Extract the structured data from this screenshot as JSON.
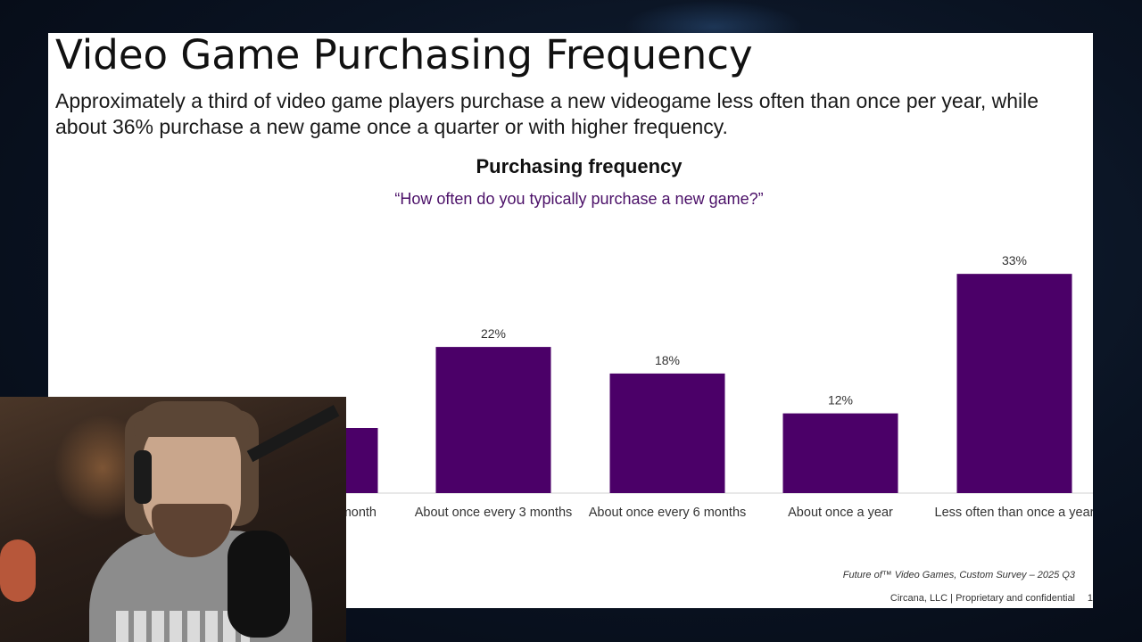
{
  "slide": {
    "title": "Video Game Purchasing Frequency",
    "subtitle": "Approximately a third of video game players purchase a new videogame less often than once per year, while about 36% purchase a new game once a quarter or with higher frequency.",
    "footnote": "Future of™ Video Games, Custom Survey – 2025 Q3",
    "footer": "Circana, LLC |  Proprietary and confidential",
    "page_number": "1"
  },
  "colors": {
    "bar": "#4b0068",
    "question": "#4b1068",
    "axis": "#d0d0d0",
    "background": "#0a1322",
    "slide_background": "#ffffff"
  },
  "chart_data": {
    "type": "bar",
    "title": "Purchasing frequency",
    "subtitle": "“How often do you typically purchase a new game?”",
    "categories": [
      "month",
      "About once every 3 months",
      "About once every 6 months",
      "About once a year",
      "Less often than once a year"
    ],
    "values": [
      null,
      22,
      18,
      12,
      33
    ],
    "data_labels": [
      "",
      "22%",
      "18%",
      "12%",
      "33%"
    ],
    "ylim": [
      0,
      40
    ],
    "grid": false,
    "xlabel": "",
    "ylabel": ""
  },
  "webcam": {
    "icon": "streamer-webcam-icon"
  }
}
